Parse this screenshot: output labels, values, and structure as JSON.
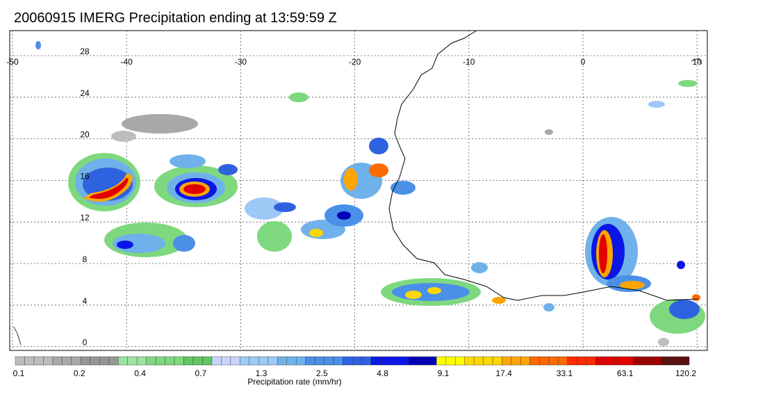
{
  "title": "20060915 IMERG Precipitation ending at 13:59:59 Z",
  "map": {
    "lon_range": [
      -50,
      10
    ],
    "lat_range": [
      -1,
      31
    ],
    "lon_ticks": [
      "-50",
      "-40",
      "-30",
      "-20",
      "-10",
      "0",
      "10"
    ],
    "lat_ticks": [
      "28",
      "24",
      "20",
      "16",
      "12",
      "8",
      "4",
      "0"
    ],
    "gridlines": "dotted",
    "region": "West Africa / tropical Atlantic"
  },
  "colorbar": {
    "label": "Precipitation rate (mm/hr)",
    "tick_labels": [
      "0.1",
      "0.2",
      "0.4",
      "0.7",
      "1.3",
      "2.5",
      "4.8",
      "9.1",
      "17.4",
      "33.1",
      "63.1",
      "120.2"
    ],
    "colors": [
      "#bdbdbd",
      "#a8a8a8",
      "#969696",
      "#9ee39e",
      "#7ed87e",
      "#5fc75f",
      "#c9d4ff",
      "#9ec8f5",
      "#6fb1ea",
      "#4a90e8",
      "#2f62e0",
      "#0a16e6",
      "#0000b8",
      "#ffff00",
      "#ffd700",
      "#ffa500",
      "#ff6a00",
      "#ff2a00",
      "#e00000",
      "#a00000",
      "#5a1010"
    ]
  }
}
